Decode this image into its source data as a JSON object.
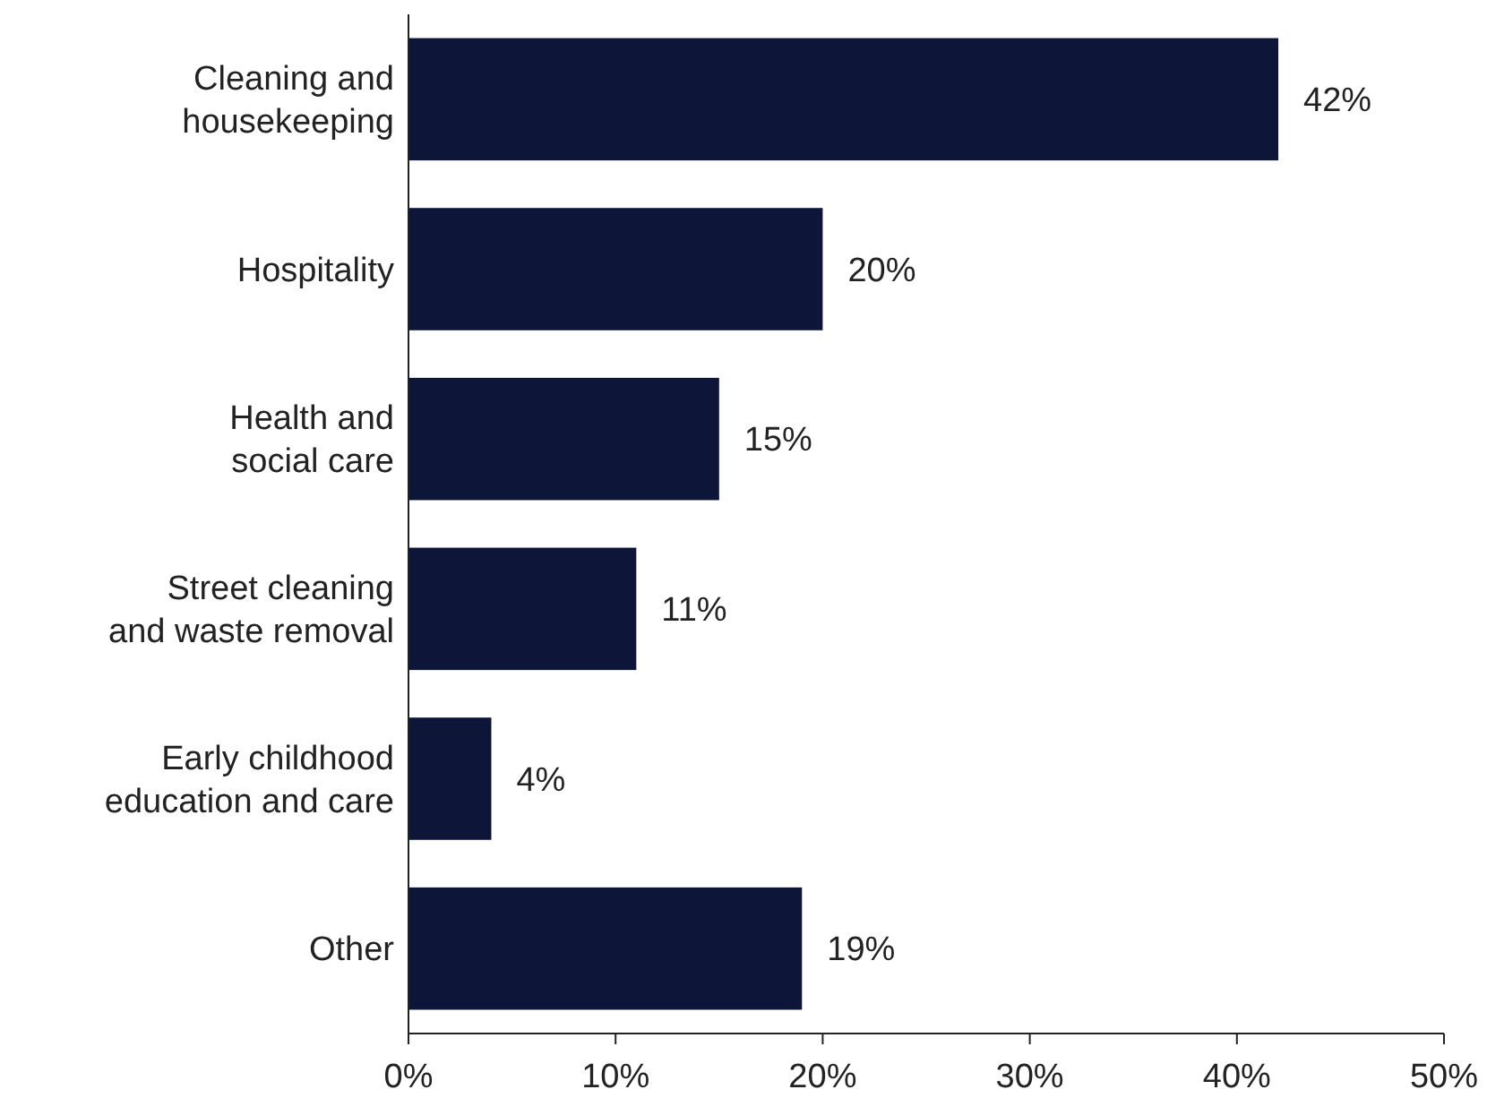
{
  "chart_data": {
    "type": "bar",
    "orientation": "horizontal",
    "categories": [
      "Cleaning and housekeeping",
      "Hospitality",
      "Health and social care",
      "Street cleaning and waste removal",
      "Early childhood education and care",
      "Other"
    ],
    "values": [
      42,
      20,
      15,
      11,
      4,
      19
    ],
    "value_labels": [
      "42%",
      "20%",
      "15%",
      "11%",
      "4%",
      "19%"
    ],
    "color": "#0d1538",
    "xlim": [
      0,
      50
    ],
    "xticks": [
      {
        "value": 0,
        "label": "0%"
      },
      {
        "value": 10,
        "label": "10%"
      },
      {
        "value": 20,
        "label": "20%"
      },
      {
        "value": 30,
        "label": "30%"
      },
      {
        "value": 40,
        "label": "40%"
      },
      {
        "value": 50,
        "label": "50%"
      }
    ],
    "grid": false
  }
}
